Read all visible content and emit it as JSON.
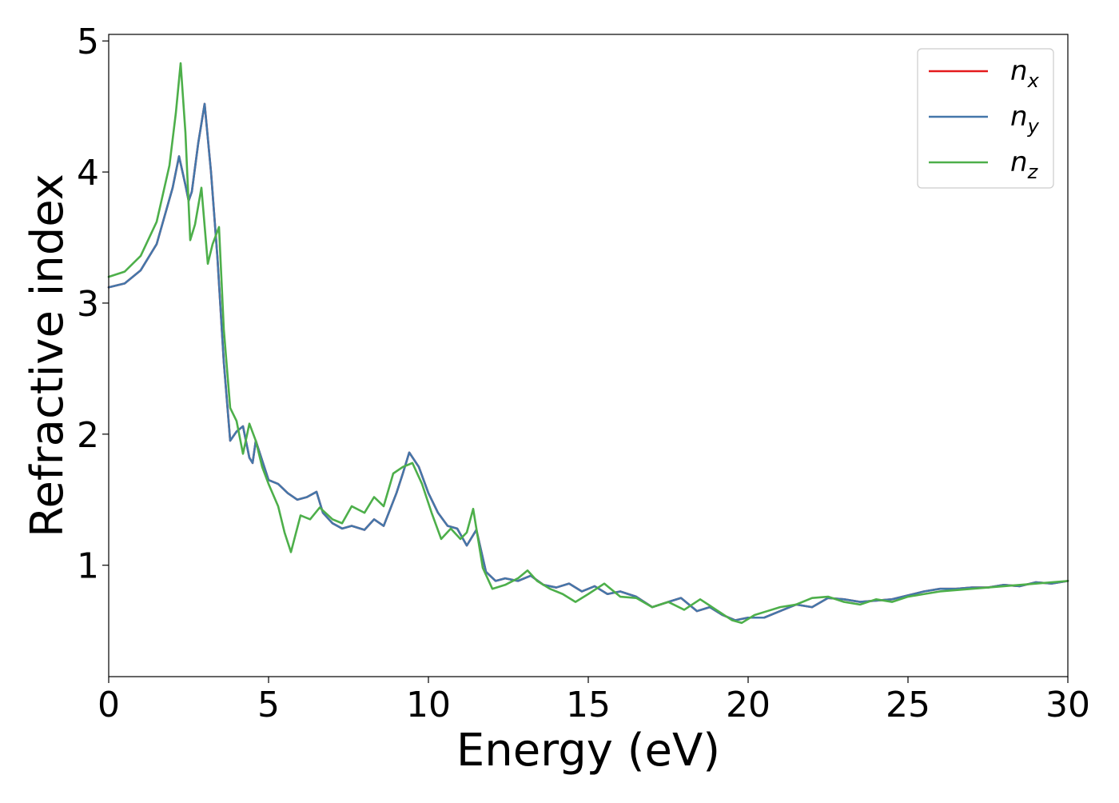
{
  "chart_data": {
    "type": "line",
    "title": "",
    "xlabel": "Energy (eV)",
    "ylabel": "Refractive index",
    "xlim": [
      0,
      30
    ],
    "ylim": [
      0.15,
      5.05
    ],
    "xticks": [
      0,
      5,
      10,
      15,
      20,
      25,
      30
    ],
    "yticks": [
      1,
      2,
      3,
      4,
      5
    ],
    "xtick_labels": [
      "0",
      "5",
      "10",
      "15",
      "20",
      "25",
      "30"
    ],
    "ytick_labels": [
      "1",
      "2",
      "3",
      "4",
      "5"
    ],
    "grid": false,
    "legend": {
      "placement": "top-right"
    },
    "series": [
      {
        "name": "n_x",
        "label_base": "n",
        "label_sub": "x",
        "color": "#e41a1c",
        "x": [
          0,
          0.5,
          1.0,
          1.5,
          2.0,
          2.2,
          2.4,
          2.5,
          2.6,
          2.8,
          3.0,
          3.2,
          3.4,
          3.6,
          3.8,
          4.0,
          4.2,
          4.4,
          4.5,
          4.6,
          4.8,
          5.0,
          5.3,
          5.6,
          5.9,
          6.2,
          6.5,
          6.7,
          7.0,
          7.3,
          7.6,
          8.0,
          8.3,
          8.6,
          9.0,
          9.2,
          9.4,
          9.7,
          10.0,
          10.3,
          10.6,
          10.9,
          11.2,
          11.5,
          11.8,
          12.1,
          12.4,
          12.8,
          13.2,
          13.6,
          14.0,
          14.4,
          14.8,
          15.2,
          15.6,
          16.0,
          16.5,
          17.0,
          17.5,
          17.9,
          18.4,
          18.8,
          19.2,
          19.6,
          20.0,
          20.5,
          21.0,
          21.5,
          22.0,
          22.5,
          23.0,
          23.5,
          24.0,
          24.5,
          25.0,
          25.5,
          26.0,
          26.5,
          27.0,
          27.5,
          28.0,
          28.5,
          29.0,
          29.5,
          30.0
        ],
        "y": [
          3.12,
          3.15,
          3.25,
          3.45,
          3.88,
          4.12,
          3.9,
          3.78,
          3.85,
          4.22,
          4.52,
          4.0,
          3.35,
          2.55,
          1.95,
          2.02,
          2.06,
          1.82,
          1.78,
          1.95,
          1.8,
          1.65,
          1.62,
          1.55,
          1.5,
          1.52,
          1.56,
          1.4,
          1.32,
          1.28,
          1.3,
          1.27,
          1.35,
          1.3,
          1.55,
          1.7,
          1.86,
          1.75,
          1.55,
          1.4,
          1.3,
          1.28,
          1.15,
          1.27,
          0.95,
          0.88,
          0.9,
          0.88,
          0.92,
          0.85,
          0.83,
          0.86,
          0.8,
          0.84,
          0.78,
          0.8,
          0.76,
          0.68,
          0.72,
          0.75,
          0.65,
          0.68,
          0.62,
          0.58,
          0.6,
          0.6,
          0.65,
          0.7,
          0.68,
          0.75,
          0.74,
          0.72,
          0.73,
          0.74,
          0.77,
          0.8,
          0.82,
          0.82,
          0.83,
          0.83,
          0.85,
          0.84,
          0.87,
          0.86,
          0.88
        ]
      },
      {
        "name": "n_y",
        "label_base": "n",
        "label_sub": "y",
        "color": "#4477aa",
        "x": [
          0,
          0.5,
          1.0,
          1.5,
          2.0,
          2.2,
          2.4,
          2.5,
          2.6,
          2.8,
          3.0,
          3.2,
          3.4,
          3.6,
          3.8,
          4.0,
          4.2,
          4.4,
          4.5,
          4.6,
          4.8,
          5.0,
          5.3,
          5.6,
          5.9,
          6.2,
          6.5,
          6.7,
          7.0,
          7.3,
          7.6,
          8.0,
          8.3,
          8.6,
          9.0,
          9.2,
          9.4,
          9.7,
          10.0,
          10.3,
          10.6,
          10.9,
          11.2,
          11.5,
          11.8,
          12.1,
          12.4,
          12.8,
          13.2,
          13.6,
          14.0,
          14.4,
          14.8,
          15.2,
          15.6,
          16.0,
          16.5,
          17.0,
          17.5,
          17.9,
          18.4,
          18.8,
          19.2,
          19.6,
          20.0,
          20.5,
          21.0,
          21.5,
          22.0,
          22.5,
          23.0,
          23.5,
          24.0,
          24.5,
          25.0,
          25.5,
          26.0,
          26.5,
          27.0,
          27.5,
          28.0,
          28.5,
          29.0,
          29.5,
          30.0
        ],
        "y": [
          3.12,
          3.15,
          3.25,
          3.45,
          3.88,
          4.12,
          3.9,
          3.78,
          3.85,
          4.22,
          4.52,
          4.0,
          3.35,
          2.55,
          1.95,
          2.02,
          2.06,
          1.82,
          1.78,
          1.95,
          1.8,
          1.65,
          1.62,
          1.55,
          1.5,
          1.52,
          1.56,
          1.4,
          1.32,
          1.28,
          1.3,
          1.27,
          1.35,
          1.3,
          1.55,
          1.7,
          1.86,
          1.75,
          1.55,
          1.4,
          1.3,
          1.28,
          1.15,
          1.27,
          0.95,
          0.88,
          0.9,
          0.88,
          0.92,
          0.85,
          0.83,
          0.86,
          0.8,
          0.84,
          0.78,
          0.8,
          0.76,
          0.68,
          0.72,
          0.75,
          0.65,
          0.68,
          0.62,
          0.58,
          0.6,
          0.6,
          0.65,
          0.7,
          0.68,
          0.75,
          0.74,
          0.72,
          0.73,
          0.74,
          0.77,
          0.8,
          0.82,
          0.82,
          0.83,
          0.83,
          0.85,
          0.84,
          0.87,
          0.86,
          0.88
        ]
      },
      {
        "name": "n_z",
        "label_base": "n",
        "label_sub": "z",
        "color": "#4daf4a",
        "x": [
          0,
          0.5,
          1.0,
          1.5,
          1.9,
          2.1,
          2.25,
          2.4,
          2.55,
          2.7,
          2.9,
          3.1,
          3.25,
          3.45,
          3.6,
          3.8,
          4.0,
          4.2,
          4.4,
          4.6,
          4.8,
          5.0,
          5.3,
          5.5,
          5.7,
          6.0,
          6.3,
          6.6,
          7.0,
          7.3,
          7.6,
          8.0,
          8.3,
          8.6,
          8.9,
          9.2,
          9.5,
          9.8,
          10.1,
          10.4,
          10.7,
          11.0,
          11.2,
          11.4,
          11.7,
          12.0,
          12.4,
          12.8,
          13.1,
          13.4,
          13.8,
          14.2,
          14.6,
          15.0,
          15.5,
          16.0,
          16.5,
          17.0,
          17.5,
          18.0,
          18.5,
          19.0,
          19.5,
          19.8,
          20.2,
          20.6,
          21.0,
          21.5,
          22.0,
          22.5,
          23.0,
          23.5,
          24.0,
          24.5,
          25.0,
          25.5,
          26.0,
          26.5,
          27.0,
          27.5,
          28.0,
          28.5,
          29.0,
          29.5,
          30.0
        ],
        "y": [
          3.2,
          3.24,
          3.36,
          3.62,
          4.05,
          4.45,
          4.83,
          4.3,
          3.48,
          3.6,
          3.88,
          3.3,
          3.45,
          3.58,
          2.8,
          2.2,
          2.1,
          1.85,
          2.08,
          1.95,
          1.75,
          1.62,
          1.45,
          1.25,
          1.1,
          1.38,
          1.35,
          1.44,
          1.35,
          1.32,
          1.45,
          1.4,
          1.52,
          1.45,
          1.7,
          1.75,
          1.78,
          1.62,
          1.4,
          1.2,
          1.28,
          1.2,
          1.25,
          1.43,
          0.98,
          0.82,
          0.85,
          0.9,
          0.96,
          0.88,
          0.82,
          0.78,
          0.72,
          0.78,
          0.86,
          0.76,
          0.75,
          0.68,
          0.72,
          0.66,
          0.74,
          0.66,
          0.58,
          0.56,
          0.62,
          0.65,
          0.68,
          0.7,
          0.75,
          0.76,
          0.72,
          0.7,
          0.74,
          0.72,
          0.76,
          0.78,
          0.8,
          0.81,
          0.82,
          0.83,
          0.84,
          0.85,
          0.86,
          0.87,
          0.88
        ]
      }
    ]
  }
}
